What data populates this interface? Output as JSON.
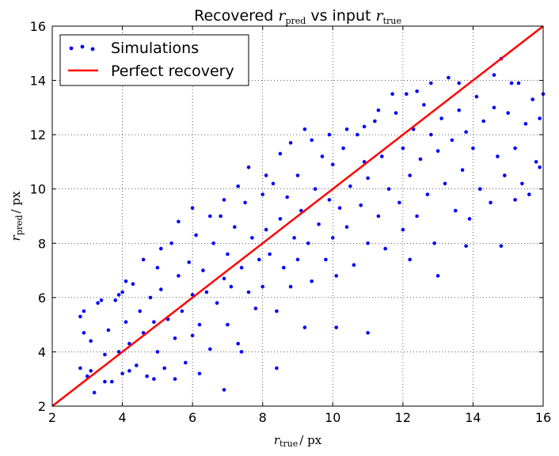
{
  "chart_data": {
    "type": "scatter",
    "title": {
      "prefix": "Recovered",
      "var1": "r",
      "sub1": "pred",
      "middle": "vs input",
      "var2": "r",
      "sub2": "true"
    },
    "xlabel": {
      "var": "r",
      "sub": "true",
      "unit": "/ px"
    },
    "ylabel": {
      "var": "r",
      "sub": "pred",
      "unit": "/ px"
    },
    "xlim": [
      2,
      16
    ],
    "ylim": [
      2,
      16
    ],
    "xticks": [
      2,
      4,
      6,
      8,
      10,
      12,
      14,
      16
    ],
    "yticks": [
      2,
      4,
      6,
      8,
      10,
      12,
      14,
      16
    ],
    "grid": true,
    "legend_position": "top-left",
    "series": [
      {
        "name": "Simulations",
        "kind": "scatter",
        "color": "#0000ff",
        "points": [
          [
            2.8,
            3.4
          ],
          [
            2.9,
            5.5
          ],
          [
            3.0,
            3.1
          ],
          [
            3.1,
            4.4
          ],
          [
            3.2,
            2.5
          ],
          [
            3.3,
            5.8
          ],
          [
            3.5,
            3.9
          ],
          [
            3.6,
            4.8
          ],
          [
            3.7,
            2.9
          ],
          [
            3.8,
            5.9
          ],
          [
            3.9,
            4.0
          ],
          [
            4.0,
            6.2
          ],
          [
            4.0,
            3.2
          ],
          [
            4.1,
            5.1
          ],
          [
            4.2,
            4.3
          ],
          [
            4.3,
            6.5
          ],
          [
            4.4,
            3.5
          ],
          [
            4.5,
            5.5
          ],
          [
            4.6,
            4.7
          ],
          [
            4.7,
            3.1
          ],
          [
            4.8,
            6.0
          ],
          [
            4.9,
            5.1
          ],
          [
            5.0,
            4.0
          ],
          [
            5.0,
            7.1
          ],
          [
            5.1,
            6.3
          ],
          [
            5.2,
            3.4
          ],
          [
            5.3,
            5.2
          ],
          [
            5.4,
            8.0
          ],
          [
            5.5,
            4.5
          ],
          [
            5.6,
            6.8
          ],
          [
            5.7,
            5.5
          ],
          [
            5.8,
            3.6
          ],
          [
            5.9,
            7.3
          ],
          [
            6.0,
            6.1
          ],
          [
            6.0,
            4.6
          ],
          [
            6.1,
            8.3
          ],
          [
            6.2,
            5.0
          ],
          [
            6.3,
            7.0
          ],
          [
            6.4,
            6.2
          ],
          [
            6.5,
            4.1
          ],
          [
            6.6,
            8.0
          ],
          [
            6.7,
            5.8
          ],
          [
            6.8,
            9.0
          ],
          [
            6.9,
            6.7
          ],
          [
            7.0,
            5.0
          ],
          [
            7.0,
            7.6
          ],
          [
            7.1,
            6.4
          ],
          [
            7.2,
            8.6
          ],
          [
            7.3,
            4.3
          ],
          [
            7.4,
            7.1
          ],
          [
            7.5,
            9.5
          ],
          [
            7.6,
            6.2
          ],
          [
            7.7,
            8.2
          ],
          [
            7.8,
            5.6
          ],
          [
            7.9,
            7.4
          ],
          [
            8.0,
            9.8
          ],
          [
            8.0,
            6.4
          ],
          [
            8.1,
            8.5
          ],
          [
            8.2,
            7.6
          ],
          [
            8.3,
            10.2
          ],
          [
            8.4,
            5.5
          ],
          [
            8.5,
            8.9
          ],
          [
            8.6,
            7.1
          ],
          [
            8.7,
            9.7
          ],
          [
            8.8,
            6.4
          ],
          [
            8.9,
            8.2
          ],
          [
            9.0,
            10.5
          ],
          [
            9.0,
            7.4
          ],
          [
            9.1,
            9.2
          ],
          [
            9.2,
            12.2
          ],
          [
            9.3,
            8.0
          ],
          [
            9.4,
            6.6
          ],
          [
            9.5,
            10.0
          ],
          [
            9.6,
            8.7
          ],
          [
            9.7,
            11.2
          ],
          [
            9.8,
            7.4
          ],
          [
            9.9,
            9.6
          ],
          [
            10.0,
            8.2
          ],
          [
            10.0,
            10.9
          ],
          [
            10.1,
            6.8
          ],
          [
            10.2,
            9.3
          ],
          [
            10.3,
            11.5
          ],
          [
            10.4,
            8.6
          ],
          [
            10.5,
            10.1
          ],
          [
            10.6,
            7.2
          ],
          [
            10.7,
            12.0
          ],
          [
            10.8,
            9.4
          ],
          [
            10.9,
            11.0
          ],
          [
            11.0,
            8.0
          ],
          [
            11.0,
            10.4
          ],
          [
            11.2,
            12.5
          ],
          [
            11.3,
            9.0
          ],
          [
            11.4,
            11.2
          ],
          [
            11.5,
            7.8
          ],
          [
            11.6,
            10.0
          ],
          [
            11.8,
            12.8
          ],
          [
            11.9,
            9.5
          ],
          [
            12.0,
            11.5
          ],
          [
            12.0,
            8.5
          ],
          [
            12.1,
            13.5
          ],
          [
            12.2,
            10.5
          ],
          [
            12.3,
            12.2
          ],
          [
            12.4,
            9.0
          ],
          [
            12.5,
            11.1
          ],
          [
            12.6,
            13.1
          ],
          [
            12.7,
            9.8
          ],
          [
            12.8,
            12.0
          ],
          [
            12.9,
            8.0
          ],
          [
            13.0,
            11.4
          ],
          [
            13.1,
            12.6
          ],
          [
            13.2,
            10.2
          ],
          [
            13.3,
            14.1
          ],
          [
            13.4,
            11.8
          ],
          [
            13.5,
            9.2
          ],
          [
            13.6,
            12.9
          ],
          [
            13.7,
            10.7
          ],
          [
            13.8,
            12.1
          ],
          [
            13.9,
            8.9
          ],
          [
            14.0,
            11.5
          ],
          [
            14.1,
            13.4
          ],
          [
            14.2,
            10.0
          ],
          [
            14.3,
            12.5
          ],
          [
            14.5,
            9.5
          ],
          [
            14.6,
            13.0
          ],
          [
            14.7,
            11.2
          ],
          [
            14.8,
            14.8
          ],
          [
            14.9,
            10.5
          ],
          [
            15.0,
            12.8
          ],
          [
            15.2,
            11.5
          ],
          [
            15.3,
            13.9
          ],
          [
            15.4,
            10.2
          ],
          [
            15.5,
            12.4
          ],
          [
            15.6,
            9.8
          ],
          [
            15.7,
            13.3
          ],
          [
            15.8,
            11.0
          ],
          [
            15.9,
            12.6
          ],
          [
            16.0,
            13.5
          ],
          [
            15.9,
            10.8
          ],
          [
            15.2,
            9.6
          ],
          [
            14.8,
            7.9
          ],
          [
            13.8,
            7.9
          ],
          [
            13.0,
            6.8
          ],
          [
            12.2,
            7.4
          ],
          [
            11.0,
            4.7
          ],
          [
            10.1,
            4.9
          ],
          [
            9.2,
            4.9
          ],
          [
            8.4,
            3.4
          ],
          [
            7.4,
            4.0
          ],
          [
            6.9,
            2.6
          ],
          [
            6.2,
            3.2
          ],
          [
            5.5,
            3.0
          ],
          [
            4.9,
            3.0
          ],
          [
            4.2,
            3.3
          ],
          [
            3.5,
            2.9
          ],
          [
            3.1,
            3.3
          ],
          [
            2.9,
            4.7
          ],
          [
            2.8,
            5.3
          ],
          [
            3.4,
            5.9
          ],
          [
            3.9,
            6.1
          ],
          [
            4.1,
            6.6
          ],
          [
            4.6,
            7.4
          ],
          [
            5.1,
            7.8
          ],
          [
            5.6,
            8.8
          ],
          [
            6.0,
            9.3
          ],
          [
            6.5,
            9.0
          ],
          [
            6.9,
            9.6
          ],
          [
            7.3,
            10.1
          ],
          [
            7.6,
            10.8
          ],
          [
            8.1,
            10.5
          ],
          [
            8.5,
            11.3
          ],
          [
            8.8,
            11.7
          ],
          [
            9.4,
            11.8
          ],
          [
            9.9,
            12.0
          ],
          [
            10.4,
            12.2
          ],
          [
            10.9,
            12.3
          ],
          [
            11.3,
            12.9
          ],
          [
            11.7,
            13.5
          ],
          [
            12.4,
            13.6
          ],
          [
            12.8,
            13.9
          ],
          [
            13.6,
            13.9
          ],
          [
            14.6,
            14.2
          ],
          [
            15.1,
            13.9
          ]
        ]
      },
      {
        "name": "Perfect recovery",
        "kind": "line",
        "color": "#ff0000",
        "x": [
          2,
          16
        ],
        "y": [
          2,
          16
        ]
      }
    ]
  }
}
